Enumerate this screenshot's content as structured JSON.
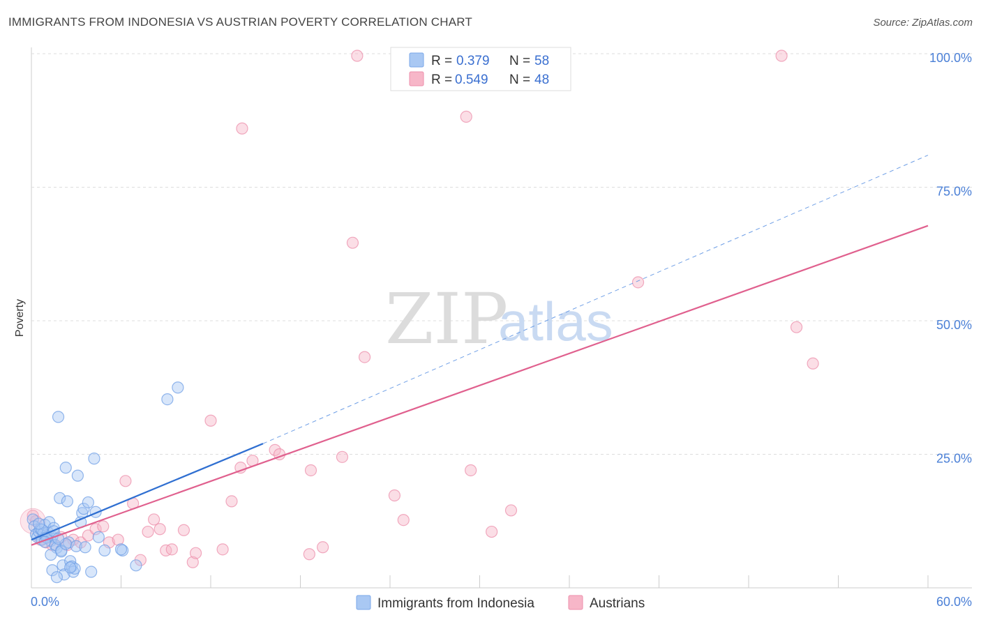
{
  "header": {
    "title": "IMMIGRANTS FROM INDONESIA VS AUSTRIAN POVERTY CORRELATION CHART",
    "source": "Source: ZipAtlas.com"
  },
  "watermark": {
    "zip": "ZIP",
    "atlas": "atlas"
  },
  "legend_top": {
    "items": [
      {
        "r_label": "R = ",
        "r_value": "0.379",
        "n_label": "N = ",
        "n_value": "58",
        "color": "#a9c8f3"
      },
      {
        "r_label": "R = ",
        "r_value": "0.549",
        "n_label": "N = ",
        "n_value": "48",
        "color": "#f7b6c8"
      }
    ]
  },
  "legend_bottom": {
    "items": [
      {
        "label": "Immigrants from Indonesia",
        "color": "#a9c8f3"
      },
      {
        "label": "Austrians",
        "color": "#f7b6c8"
      }
    ]
  },
  "chart_data": {
    "type": "scatter",
    "title": "IMMIGRANTS FROM INDONESIA VS AUSTRIAN POVERTY CORRELATION CHART",
    "xlabel": "",
    "ylabel": "Poverty",
    "xlim": [
      0,
      60
    ],
    "ylim": [
      0,
      100
    ],
    "x_tick_labels": [
      "0.0%",
      "60.0%"
    ],
    "y_tick_labels": [
      {
        "value": 25,
        "label": "25.0%"
      },
      {
        "value": 50,
        "label": "50.0%"
      },
      {
        "value": 75,
        "label": "75.0%"
      },
      {
        "value": 100,
        "label": "100.0%"
      }
    ],
    "series": [
      {
        "name": "Immigrants from Indonesia",
        "color": "#4a86e8",
        "fill": "#a9c8f3",
        "r": 0.379,
        "n": 58,
        "trend": {
          "x0": 0,
          "y0": 9.0,
          "x1": 15.5,
          "y1": 27.0,
          "extend_to_x": 60,
          "extend_to_y": 81.0
        },
        "points": [
          [
            0.1,
            12.8
          ],
          [
            0.2,
            11.5
          ],
          [
            0.3,
            10.0
          ],
          [
            0.4,
            9.5
          ],
          [
            0.5,
            10.5
          ],
          [
            0.6,
            11.0
          ],
          [
            0.7,
            9.0
          ],
          [
            0.8,
            10.2
          ],
          [
            0.9,
            11.8
          ],
          [
            1.0,
            9.8
          ],
          [
            1.1,
            10.4
          ],
          [
            1.2,
            12.3
          ],
          [
            1.3,
            8.8
          ],
          [
            1.4,
            9.6
          ],
          [
            1.5,
            11.2
          ],
          [
            1.6,
            8.0
          ],
          [
            1.7,
            7.5
          ],
          [
            1.8,
            32.0
          ],
          [
            1.9,
            16.8
          ],
          [
            2.0,
            7.0
          ],
          [
            2.1,
            4.2
          ],
          [
            2.2,
            2.5
          ],
          [
            2.3,
            22.5
          ],
          [
            2.4,
            16.2
          ],
          [
            2.5,
            8.5
          ],
          [
            2.6,
            5.0
          ],
          [
            2.7,
            4.0
          ],
          [
            2.8,
            3.0
          ],
          [
            2.9,
            3.6
          ],
          [
            3.0,
            7.8
          ],
          [
            3.1,
            21.0
          ],
          [
            3.3,
            12.3
          ],
          [
            3.4,
            14.0
          ],
          [
            3.5,
            14.8
          ],
          [
            3.8,
            16.0
          ],
          [
            4.2,
            24.2
          ],
          [
            4.3,
            14.2
          ],
          [
            4.5,
            9.5
          ],
          [
            4.0,
            3.0
          ],
          [
            4.9,
            7.0
          ],
          [
            6.1,
            7.0
          ],
          [
            7.0,
            4.2
          ],
          [
            9.1,
            35.3
          ],
          [
            9.8,
            37.5
          ],
          [
            1.4,
            3.3
          ],
          [
            1.7,
            2.0
          ],
          [
            2.0,
            6.8
          ],
          [
            0.7,
            10.9
          ],
          [
            1.0,
            9.4
          ],
          [
            1.5,
            10.6
          ],
          [
            0.9,
            8.6
          ],
          [
            2.3,
            8.2
          ],
          [
            3.6,
            7.6
          ],
          [
            0.5,
            12.0
          ],
          [
            1.3,
            6.2
          ],
          [
            2.6,
            3.8
          ],
          [
            6.0,
            7.2
          ],
          [
            1.8,
            9.2
          ]
        ]
      },
      {
        "name": "Austrians",
        "color": "#e8729b",
        "fill": "#f7b6c8",
        "r": 0.549,
        "n": 48,
        "trend": {
          "x0": 0,
          "y0": 8.0,
          "x1": 60,
          "y1": 67.8
        },
        "points": [
          [
            0.1,
            13.5
          ],
          [
            0.3,
            12.5
          ],
          [
            0.6,
            9.0
          ],
          [
            1.0,
            8.5
          ],
          [
            1.4,
            8.0
          ],
          [
            2.0,
            9.5
          ],
          [
            2.4,
            8.0
          ],
          [
            2.8,
            9.0
          ],
          [
            3.3,
            8.5
          ],
          [
            3.8,
            9.8
          ],
          [
            4.3,
            11.0
          ],
          [
            4.8,
            11.5
          ],
          [
            5.2,
            8.5
          ],
          [
            5.8,
            9.0
          ],
          [
            6.3,
            20.0
          ],
          [
            6.8,
            15.8
          ],
          [
            7.3,
            5.2
          ],
          [
            7.8,
            10.5
          ],
          [
            8.2,
            12.8
          ],
          [
            8.6,
            11.0
          ],
          [
            9.0,
            7.0
          ],
          [
            9.4,
            7.2
          ],
          [
            10.2,
            10.8
          ],
          [
            10.8,
            4.8
          ],
          [
            11.0,
            6.5
          ],
          [
            12.0,
            31.3
          ],
          [
            12.8,
            7.2
          ],
          [
            13.4,
            16.2
          ],
          [
            14.0,
            22.5
          ],
          [
            14.8,
            23.8
          ],
          [
            16.3,
            25.8
          ],
          [
            16.6,
            25.0
          ],
          [
            18.6,
            6.3
          ],
          [
            18.7,
            22.0
          ],
          [
            19.5,
            7.6
          ],
          [
            20.8,
            24.5
          ],
          [
            21.5,
            64.6
          ],
          [
            22.3,
            43.2
          ],
          [
            24.3,
            17.3
          ],
          [
            24.9,
            12.7
          ],
          [
            29.4,
            22.0
          ],
          [
            30.8,
            10.5
          ],
          [
            32.1,
            14.5
          ],
          [
            40.6,
            57.2
          ],
          [
            51.2,
            48.8
          ],
          [
            52.3,
            42.0
          ],
          [
            14.1,
            86.0
          ],
          [
            29.1,
            88.2
          ]
        ],
        "points_offscale_top": [
          [
            21.8,
            100.0
          ],
          [
            50.2,
            100.0
          ]
        ]
      }
    ]
  }
}
